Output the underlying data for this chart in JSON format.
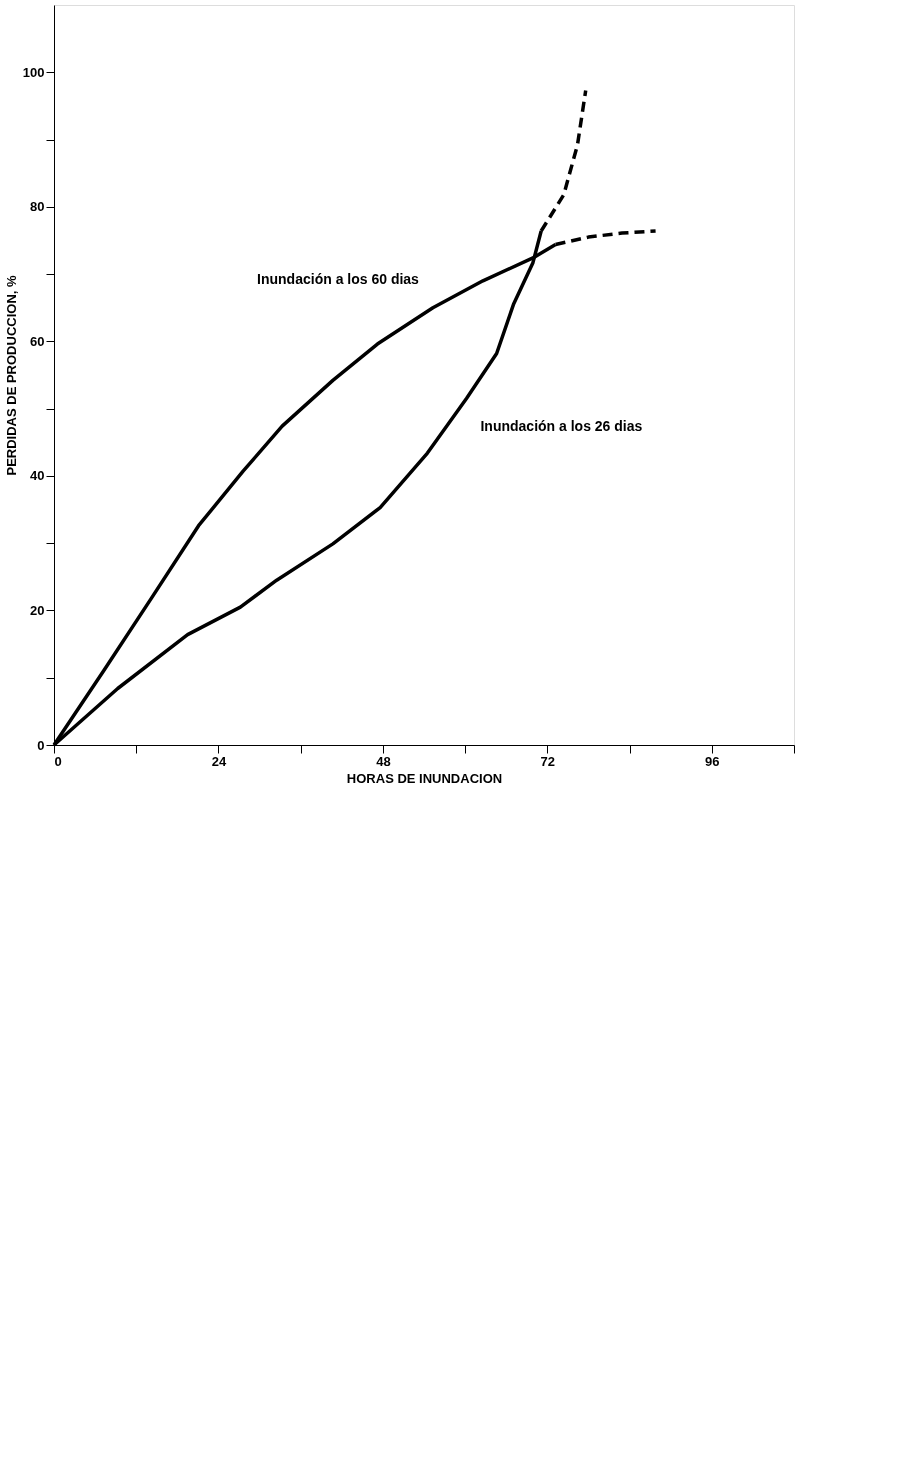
{
  "chart_data": {
    "type": "line",
    "xlabel": "HORAS DE INUNDACION",
    "ylabel": "PERDIDAS DE PRODUCCION, %",
    "xlim": [
      0,
      108
    ],
    "ylim": [
      0,
      110
    ],
    "xticks": [
      0,
      {
        "value": 12,
        "label": null
      },
      24,
      {
        "value": 36,
        "label": null
      },
      48,
      {
        "value": 60,
        "label": null
      },
      72,
      {
        "value": 84,
        "label": null
      },
      96,
      {
        "value": 108,
        "label": null
      }
    ],
    "yticks": [
      0,
      {
        "value": 10,
        "label": null
      },
      20,
      {
        "value": 30,
        "label": null
      },
      40,
      {
        "value": 50,
        "label": null
      },
      60,
      {
        "value": 70,
        "label": null
      },
      80,
      {
        "value": 90,
        "label": null
      },
      100
    ],
    "grid": false,
    "marker": "none",
    "series": [
      {
        "name": "Inundación a los 26 dias",
        "color": "#000000",
        "line_style": "solid",
        "x": [
          0,
          9.3,
          19.5,
          27.2,
          32.5,
          40.7,
          47.6,
          54.5,
          60.2,
          64.6,
          67.1,
          69.9,
          71.1
        ],
        "values": [
          0,
          8.4,
          16.4,
          20.5,
          24.5,
          29.9,
          35.3,
          43.4,
          51.5,
          58.2,
          65.6,
          71.7,
          76.4
        ]
      },
      {
        "color": "#000000",
        "line_style": "dashed",
        "x": [
          71.1,
          74.4,
          76.4,
          77.6
        ],
        "values": [
          76.4,
          81.8,
          89.2,
          97.3
        ]
      },
      {
        "name": "Inundación a los 60 dias",
        "color": "#000000",
        "line_style": "solid",
        "x": [
          0,
          7.3,
          14.2,
          21.1,
          27.6,
          33.3,
          40.7,
          47.2,
          55.3,
          62.6,
          69.9,
          73.2
        ],
        "values": [
          0,
          11.1,
          21.8,
          32.6,
          40.7,
          47.4,
          54.2,
          59.6,
          65.0,
          69.0,
          72.4,
          74.4
        ]
      },
      {
        "color": "#000000",
        "line_style": "dashed",
        "x": [
          73.2,
          78.0,
          82.9,
          87.8
        ],
        "values": [
          74.4,
          75.5,
          76.1,
          76.4
        ]
      }
    ]
  }
}
